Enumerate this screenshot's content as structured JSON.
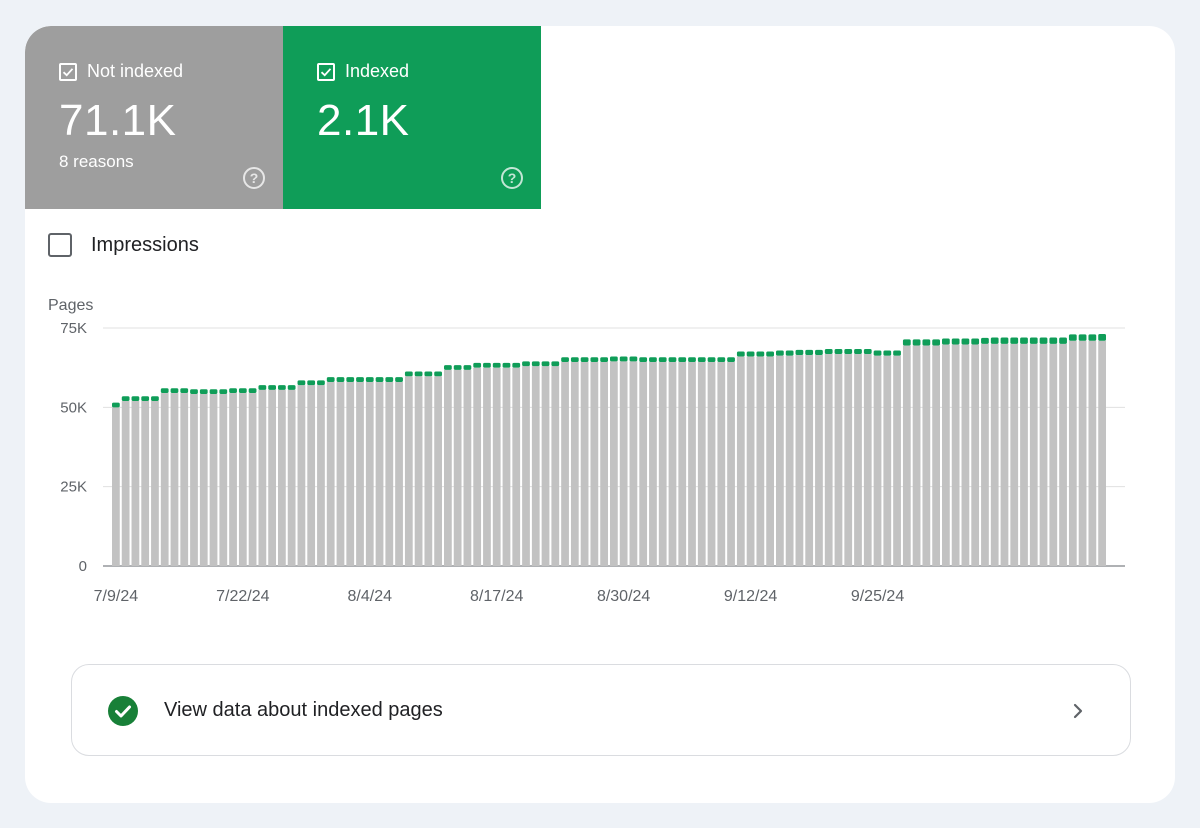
{
  "tiles": {
    "not_indexed": {
      "label": "Not indexed",
      "value": "71.1K",
      "sub": "8 reasons",
      "checked": true,
      "color": "#9e9e9e"
    },
    "indexed": {
      "label": "Indexed",
      "value": "2.1K",
      "checked": true,
      "color": "#0f9d58"
    }
  },
  "impressions": {
    "label": "Impressions",
    "checked": false
  },
  "chart_data": {
    "type": "bar",
    "stacked": true,
    "ylabel": "Pages",
    "ylim": [
      0,
      75000
    ],
    "yticks": [
      "0",
      "25K",
      "50K",
      "75K"
    ],
    "xticks": [
      "7/9/24",
      "7/22/24",
      "8/4/24",
      "8/17/24",
      "8/30/24",
      "9/12/24",
      "9/25/24"
    ],
    "start_date": "2024-07-09",
    "grid": true,
    "colors": {
      "not_indexed": "#c2c2c2",
      "indexed": "#0f9d58"
    },
    "series": [
      {
        "name": "Not indexed",
        "values": [
          50000,
          52000,
          52000,
          52000,
          52000,
          54500,
          54500,
          54500,
          54200,
          54200,
          54200,
          54200,
          54500,
          54500,
          54500,
          55500,
          55500,
          55500,
          55500,
          57000,
          57000,
          57000,
          58000,
          58000,
          58000,
          58000,
          58000,
          58000,
          58000,
          58000,
          59800,
          59800,
          59800,
          59800,
          61800,
          61800,
          61800,
          62500,
          62500,
          62500,
          62500,
          62500,
          63000,
          63000,
          63000,
          63000,
          64300,
          64300,
          64300,
          64300,
          64300,
          64500,
          64500,
          64500,
          64300,
          64300,
          64300,
          64300,
          64300,
          64300,
          64300,
          64300,
          64300,
          64300,
          66000,
          66000,
          66000,
          66000,
          66300,
          66300,
          66500,
          66500,
          66500,
          66800,
          66800,
          66800,
          66800,
          66800,
          66300,
          66300,
          66300,
          69500,
          69500,
          69500,
          69500,
          69800,
          69800,
          69800,
          69800,
          70000,
          70000,
          70000,
          70000,
          70000,
          70000,
          70000,
          70000,
          70000,
          71000,
          71000,
          71000,
          71000
        ]
      },
      {
        "name": "Indexed",
        "values": [
          1500,
          1500,
          1500,
          1500,
          1500,
          1500,
          1500,
          1500,
          1500,
          1500,
          1500,
          1500,
          1500,
          1500,
          1500,
          1500,
          1500,
          1500,
          1500,
          1500,
          1500,
          1500,
          1500,
          1500,
          1500,
          1500,
          1500,
          1500,
          1500,
          1500,
          1500,
          1500,
          1500,
          1500,
          1500,
          1500,
          1500,
          1500,
          1500,
          1500,
          1500,
          1500,
          1500,
          1500,
          1500,
          1500,
          1500,
          1500,
          1500,
          1500,
          1500,
          1500,
          1500,
          1500,
          1500,
          1500,
          1500,
          1500,
          1500,
          1500,
          1500,
          1500,
          1500,
          1500,
          1600,
          1600,
          1600,
          1600,
          1600,
          1600,
          1600,
          1600,
          1600,
          1600,
          1600,
          1600,
          1600,
          1600,
          1600,
          1600,
          1600,
          1900,
          1900,
          1900,
          1900,
          1900,
          1900,
          1900,
          1900,
          1900,
          2000,
          2000,
          2000,
          2000,
          2000,
          2000,
          2000,
          2000,
          2000,
          2000,
          2000,
          2100
        ]
      }
    ]
  },
  "cta": {
    "label": "View data about indexed pages",
    "icon": "check-circle-icon",
    "arrow_icon": "chevron-right-icon"
  }
}
